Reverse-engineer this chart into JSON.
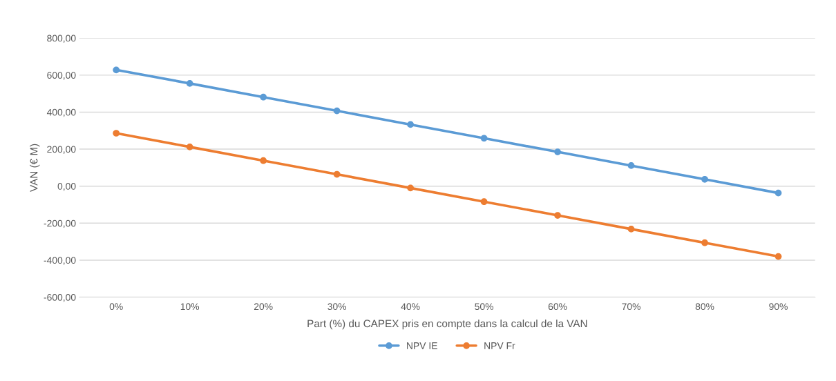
{
  "chart_data": {
    "type": "line",
    "xlabel": "Part (%) du CAPEX pris en compte dans la calcul de la VAN",
    "ylabel": "VAN (€ M)",
    "categories": [
      "0%",
      "10%",
      "20%",
      "30%",
      "40%",
      "50%",
      "60%",
      "70%",
      "80%",
      "90%"
    ],
    "series": [
      {
        "name": "NPV IE",
        "color": "#5b9bd5",
        "values": [
          628,
          555,
          481,
          407,
          333,
          259,
          185,
          111,
          37,
          -37
        ]
      },
      {
        "name": "NPV Fr",
        "color": "#ed7d31",
        "values": [
          286,
          212,
          138,
          64,
          -10,
          -84,
          -158,
          -232,
          -306,
          -380
        ]
      }
    ],
    "ylim": [
      -600,
      800
    ],
    "yticks": [
      {
        "value": -600,
        "label": "-600,00"
      },
      {
        "value": -400,
        "label": "-400,00"
      },
      {
        "value": -200,
        "label": "-200,00"
      },
      {
        "value": 0,
        "label": "0,00"
      },
      {
        "value": 200,
        "label": "200,00"
      },
      {
        "value": 400,
        "label": "400,00"
      },
      {
        "value": 600,
        "label": "600,00"
      },
      {
        "value": 800,
        "label": "800,00"
      }
    ],
    "grid": "y",
    "legend": "bottom",
    "marker": "circle",
    "line_style": "solid"
  }
}
